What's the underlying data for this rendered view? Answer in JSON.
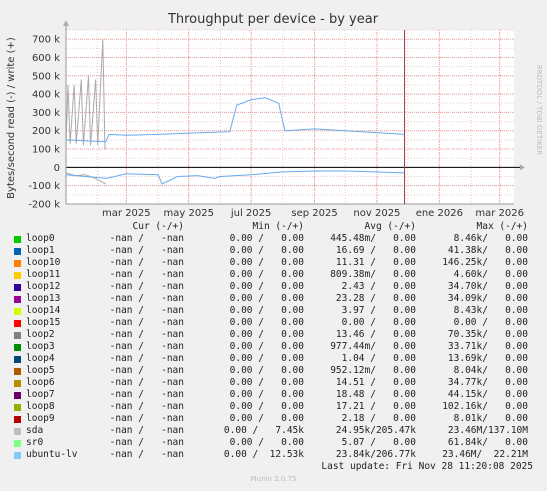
{
  "chart_data": {
    "type": "line",
    "title": "Throughput per device - by year",
    "ylabel": "Bytes/second read (-) / write (+)",
    "side_label": "RRDTOOL / TOBI OETIKER",
    "ylim": [
      -200000,
      750000
    ],
    "y_ticks": [
      -200000,
      -100000,
      0,
      100000,
      200000,
      300000,
      400000,
      500000,
      600000,
      700000
    ],
    "y_tick_labels": [
      "-200 k",
      "-100 k",
      "0",
      "100 k",
      "200 k",
      "300 k",
      "400 k",
      "500 k",
      "600 k",
      "700 k"
    ],
    "x_range": [
      "2025-01-01",
      "2026-03-15"
    ],
    "x_ticks": [
      "2025-03-01",
      "2025-05-01",
      "2025-07-01",
      "2025-09-01",
      "2025-11-01",
      "2026-01-01",
      "2026-03-01"
    ],
    "x_tick_labels": [
      "mar 2025",
      "may 2025",
      "jul 2025",
      "sep 2025",
      "nov 2025",
      "ene 2026",
      "mar 2026"
    ],
    "now_marker": "2025-11-28",
    "grid": true,
    "series": [
      {
        "name": "sda",
        "color": "#aaaaaa",
        "write": [
          [
            "2025-01-01",
            120000
          ],
          [
            "2025-01-03",
            450000
          ],
          [
            "2025-01-05",
            130000
          ],
          [
            "2025-01-09",
            450000
          ],
          [
            "2025-01-11",
            130000
          ],
          [
            "2025-01-16",
            480000
          ],
          [
            "2025-01-18",
            120000
          ],
          [
            "2025-01-23",
            500000
          ],
          [
            "2025-01-25",
            120000
          ],
          [
            "2025-01-30",
            480000
          ],
          [
            "2025-02-01",
            120000
          ],
          [
            "2025-02-06",
            700000
          ],
          [
            "2025-02-08",
            110000
          ],
          [
            "2025-02-09",
            100000
          ]
        ],
        "read": [
          [
            "2025-01-01",
            -30000
          ],
          [
            "2025-01-10",
            -45000
          ],
          [
            "2025-01-20",
            -40000
          ],
          [
            "2025-01-30",
            -60000
          ],
          [
            "2025-02-05",
            -80000
          ],
          [
            "2025-02-09",
            -90000
          ]
        ]
      },
      {
        "name": "ubuntu-lv",
        "color": "#66aaee",
        "write": [
          [
            "2025-01-01",
            150000
          ],
          [
            "2025-02-09",
            140000
          ],
          [
            "2025-02-12",
            180000
          ],
          [
            "2025-03-01",
            175000
          ],
          [
            "2025-04-01",
            180000
          ],
          [
            "2025-05-15",
            190000
          ],
          [
            "2025-06-10",
            195000
          ],
          [
            "2025-06-17",
            340000
          ],
          [
            "2025-07-01",
            370000
          ],
          [
            "2025-07-15",
            380000
          ],
          [
            "2025-07-28",
            350000
          ],
          [
            "2025-08-03",
            200000
          ],
          [
            "2025-09-01",
            210000
          ],
          [
            "2025-10-01",
            200000
          ],
          [
            "2025-11-01",
            190000
          ],
          [
            "2025-11-28",
            180000
          ]
        ],
        "read": [
          [
            "2025-01-01",
            -40000
          ],
          [
            "2025-02-10",
            -60000
          ],
          [
            "2025-03-01",
            -35000
          ],
          [
            "2025-04-01",
            -40000
          ],
          [
            "2025-04-05",
            -90000
          ],
          [
            "2025-04-20",
            -50000
          ],
          [
            "2025-05-10",
            -45000
          ],
          [
            "2025-05-26",
            -60000
          ],
          [
            "2025-06-01",
            -50000
          ],
          [
            "2025-07-01",
            -40000
          ],
          [
            "2025-08-01",
            -25000
          ],
          [
            "2025-09-01",
            -20000
          ],
          [
            "2025-10-01",
            -20000
          ],
          [
            "2025-11-28",
            -30000
          ]
        ]
      }
    ]
  },
  "legend": {
    "headers": {
      "cur": "Cur (-/+)",
      "min": "Min (-/+)",
      "avg": "Avg (-/+)",
      "max": "Max (-/+)"
    },
    "rows": [
      {
        "name": "loop0",
        "color": "#00cc00",
        "cur": "-nan /   -nan",
        "min": "0.00 /   0.00",
        "avg": "445.48m/   0.00",
        "max": "8.46k/   0.00"
      },
      {
        "name": "loop1",
        "color": "#0066b3",
        "cur": "-nan /   -nan",
        "min": "0.00 /   0.00",
        "avg": "16.69 /   0.00",
        "max": "41.38k/   0.00"
      },
      {
        "name": "loop10",
        "color": "#ff8000",
        "cur": "-nan /   -nan",
        "min": "0.00 /   0.00",
        "avg": "11.31 /   0.00",
        "max": "146.25k/   0.00"
      },
      {
        "name": "loop11",
        "color": "#ffcc00",
        "cur": "-nan /   -nan",
        "min": "0.00 /   0.00",
        "avg": "809.38m/   0.00",
        "max": "4.60k/   0.00"
      },
      {
        "name": "loop12",
        "color": "#330099",
        "cur": "-nan /   -nan",
        "min": "0.00 /   0.00",
        "avg": "2.43 /   0.00",
        "max": "34.70k/   0.00"
      },
      {
        "name": "loop13",
        "color": "#990099",
        "cur": "-nan /   -nan",
        "min": "0.00 /   0.00",
        "avg": "23.28 /   0.00",
        "max": "34.09k/   0.00"
      },
      {
        "name": "loop14",
        "color": "#ccff00",
        "cur": "-nan /   -nan",
        "min": "0.00 /   0.00",
        "avg": "3.97 /   0.00",
        "max": "8.43k/   0.00"
      },
      {
        "name": "loop15",
        "color": "#ff0000",
        "cur": "-nan /   -nan",
        "min": "0.00 /   0.00",
        "avg": "0.00 /   0.00",
        "max": "0.00 /   0.00"
      },
      {
        "name": "loop2",
        "color": "#808080",
        "cur": "-nan /   -nan",
        "min": "0.00 /   0.00",
        "avg": "13.46 /   0.00",
        "max": "70.35k/   0.00"
      },
      {
        "name": "loop3",
        "color": "#008f00",
        "cur": "-nan /   -nan",
        "min": "0.00 /   0.00",
        "avg": "977.44m/   0.00",
        "max": "33.71k/   0.00"
      },
      {
        "name": "loop4",
        "color": "#00487d",
        "cur": "-nan /   -nan",
        "min": "0.00 /   0.00",
        "avg": "1.04 /   0.00",
        "max": "13.69k/   0.00"
      },
      {
        "name": "loop5",
        "color": "#b35a00",
        "cur": "-nan /   -nan",
        "min": "0.00 /   0.00",
        "avg": "952.12m/   0.00",
        "max": "8.04k/   0.00"
      },
      {
        "name": "loop6",
        "color": "#b38f00",
        "cur": "-nan /   -nan",
        "min": "0.00 /   0.00",
        "avg": "14.51 /   0.00",
        "max": "34.77k/   0.00"
      },
      {
        "name": "loop7",
        "color": "#6b006b",
        "cur": "-nan /   -nan",
        "min": "0.00 /   0.00",
        "avg": "18.48 /   0.00",
        "max": "44.15k/   0.00"
      },
      {
        "name": "loop8",
        "color": "#8fb300",
        "cur": "-nan /   -nan",
        "min": "0.00 /   0.00",
        "avg": "17.21 /   0.00",
        "max": "102.16k/   0.00"
      },
      {
        "name": "loop9",
        "color": "#b30000",
        "cur": "-nan /   -nan",
        "min": "0.00 /   0.00",
        "avg": "2.18 /   0.00",
        "max": "8.01k/   0.00"
      },
      {
        "name": "sda",
        "color": "#bebebe",
        "cur": "-nan /   -nan",
        "min": "0.00 /   7.45k",
        "avg": "24.95k/205.47k",
        "max": "23.46M/137.10M"
      },
      {
        "name": "sr0",
        "color": "#80ff80",
        "cur": "-nan /   -nan",
        "min": "0.00 /   0.00",
        "avg": "5.07 /   0.00",
        "max": "61.84k/   0.00"
      },
      {
        "name": "ubuntu-lv",
        "color": "#80c9ff",
        "cur": "-nan /   -nan",
        "min": "0.00 /  12.53k",
        "avg": "23.84k/206.77k",
        "max": "23.46M/  22.21M"
      }
    ]
  },
  "footer": {
    "last_update": "Last update: Fri Nov 28 11:20:08 2025",
    "munin": "Munin 2.0.75"
  }
}
